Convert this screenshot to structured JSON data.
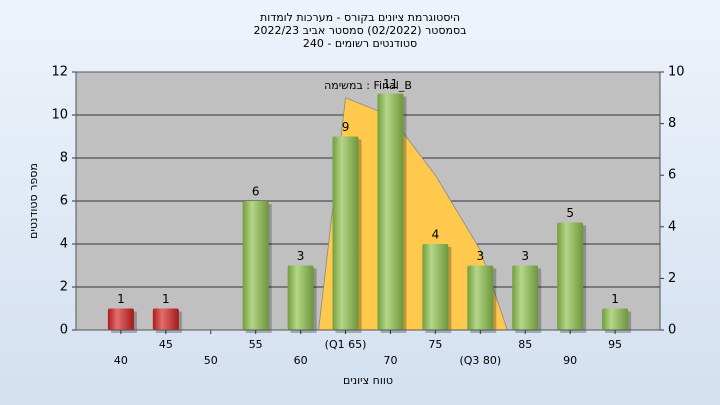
{
  "chart_data": {
    "type": "bar",
    "title": [
      "היסטוגרמת ציונים בקורס - מערכות לומדות",
      "בסמסטר  (02/2022)  סמסטר אביב 2022/23",
      "סטודנטים רשומים - 240"
    ],
    "annotation": "במשימה : Final_B",
    "x_label": "טווח ציונים",
    "y_label": "מספר סטודנטים",
    "x": [
      40,
      45,
      50,
      55,
      60,
      65,
      70,
      75,
      80,
      85,
      90,
      95
    ],
    "values": [
      1,
      1,
      0,
      6,
      3,
      9,
      11,
      4,
      3,
      3,
      5,
      1
    ],
    "colors": [
      "#d42020",
      "#d42020",
      "#8cc04a",
      "#8cc04a",
      "#8cc04a",
      "#8cc04a",
      "#8cc04a",
      "#8cc04a",
      "#8cc04a",
      "#8cc04a",
      "#8cc04a",
      "#8cc04a"
    ],
    "xlim": [
      35,
      100
    ],
    "xticks": [
      {
        "value": 40,
        "label": "40"
      },
      {
        "value": 45,
        "label": "45"
      },
      {
        "value": 50,
        "label": "50"
      },
      {
        "value": 55,
        "label": "55"
      },
      {
        "value": 60,
        "label": "60"
      },
      {
        "value": 65,
        "label": "(Q1 65)"
      },
      {
        "value": 70,
        "label": "70"
      },
      {
        "value": 75,
        "label": "75"
      },
      {
        "value": 80,
        "label": "(Q3 80)"
      },
      {
        "value": 85,
        "label": "85"
      },
      {
        "value": 90,
        "label": "90"
      },
      {
        "value": 95,
        "label": "95"
      }
    ],
    "ylim": [
      0,
      12
    ],
    "yticks": [
      0,
      2,
      4,
      6,
      8,
      10,
      12
    ],
    "y2lim": [
      0,
      10
    ],
    "y2ticks": [
      0,
      2,
      4,
      6,
      8,
      10
    ],
    "area": {
      "axis": "y2",
      "color": "#ffc94d",
      "x": [
        62,
        65,
        70,
        75,
        80,
        83
      ],
      "values": [
        0,
        9,
        8.3,
        6,
        3.1,
        0
      ]
    },
    "grid": true
  }
}
